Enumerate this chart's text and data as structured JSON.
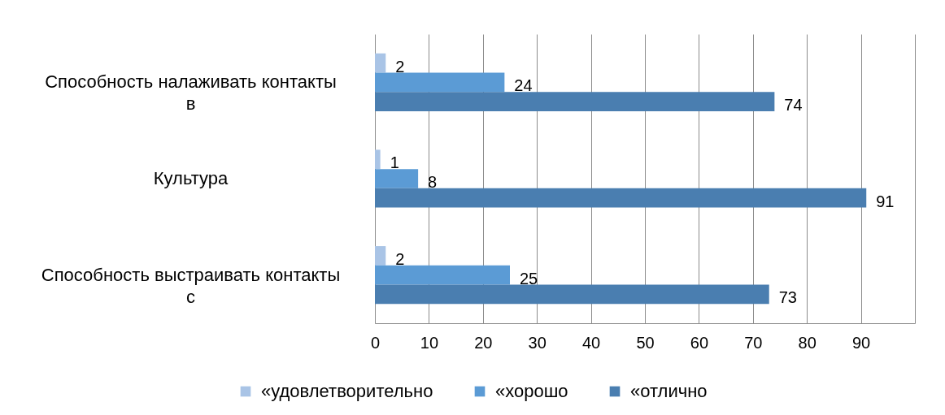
{
  "chart_data": {
    "type": "bar",
    "orientation": "horizontal",
    "categories": [
      "Способность налаживать контакты в",
      "Культура",
      "Способность выстраивать контакты с"
    ],
    "series": [
      {
        "name": "«удовлетворительно",
        "color": "#a9c4e6",
        "values": [
          2,
          1,
          2
        ]
      },
      {
        "name": "«хорошо",
        "color": "#5b9bd5",
        "values": [
          24,
          8,
          25
        ]
      },
      {
        "name": "«отлично",
        "color": "#4a7eb0",
        "values": [
          74,
          91,
          73
        ]
      }
    ],
    "xlim": [
      0,
      100
    ],
    "xticks": [
      0,
      10,
      20,
      30,
      40,
      50,
      60,
      70,
      80,
      90,
      {
        "value": 100,
        "label": null
      }
    ],
    "grid": "x",
    "legend": "bottom",
    "data_labels": true
  }
}
